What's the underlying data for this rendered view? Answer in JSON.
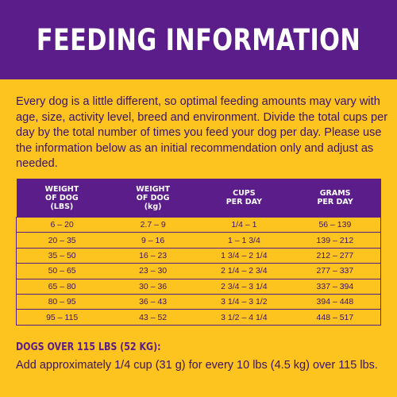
{
  "header": {
    "title": "FEEDING INFORMATION"
  },
  "intro": "Every dog is a little different, so optimal feeding amounts may vary with age, size, activity level, breed and environment. Divide the total cups per day by the total number of times you feed your dog per day. Please use the information below as an initial recommendation only and adjust as needed.",
  "table": {
    "headers": [
      [
        "WEIGHT",
        "OF DOG",
        "(LBS)"
      ],
      [
        "WEIGHT",
        "OF DOG",
        "(kg)"
      ],
      [
        "CUPS",
        "PER DAY"
      ],
      [
        "GRAMS",
        "PER DAY"
      ]
    ],
    "rows": [
      [
        "6 – 20",
        "2.7 – 9",
        "1/4 – 1",
        "56 – 139"
      ],
      [
        "20 – 35",
        "9 – 16",
        "1 – 1 3/4",
        "139 – 212"
      ],
      [
        "35 – 50",
        "16 – 23",
        "1 3/4 – 2 1/4",
        "212 – 277"
      ],
      [
        "50 – 65",
        "23 – 30",
        "2 1/4 – 2 3/4",
        "277 – 337"
      ],
      [
        "65 – 80",
        "30 – 36",
        "2 3/4 – 3 1/4",
        "337 – 394"
      ],
      [
        "80 – 95",
        "36 – 43",
        "3 1/4 – 3 1/2",
        "394 – 448"
      ],
      [
        "95 – 115",
        "43 – 52",
        "3 1/2 – 4 1/4",
        "448 – 517"
      ]
    ]
  },
  "over": {
    "title": "DOGS OVER 115 LBS (52 KG):",
    "text": "Add approximately 1/4 cup (31 g) for every 10 lbs (4.5 kg) over 115 lbs."
  },
  "colors": {
    "brand_purple": "#5a1d8a",
    "background_yellow": "#fdc41f",
    "text": "#3b1364"
  }
}
